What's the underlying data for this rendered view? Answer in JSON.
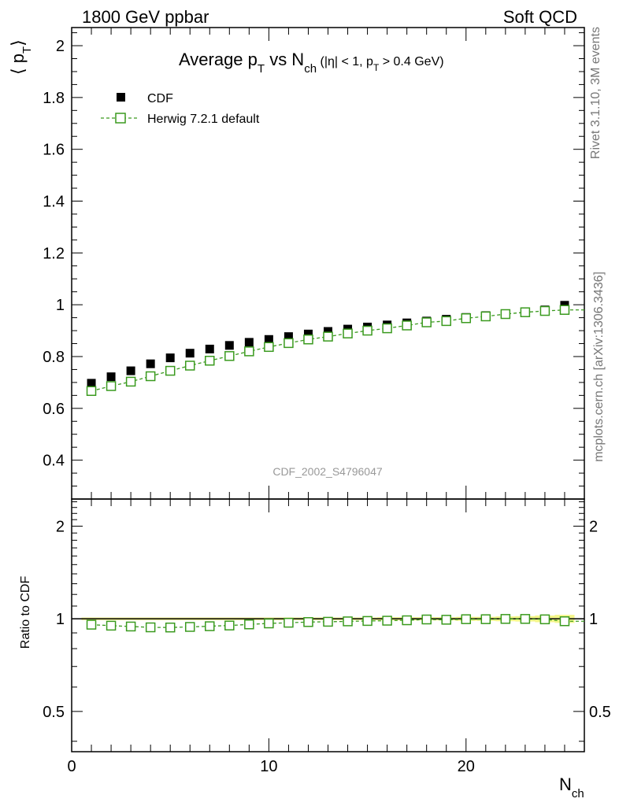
{
  "header": {
    "left": "1800 GeV ppbar",
    "right": "Soft QCD"
  },
  "side_labels": {
    "top": "Rivet 3.1.10,  3M events",
    "bottom": "mcplots.cern.ch [arXiv:1306.3436]"
  },
  "watermark": "CDF_2002_S4796047",
  "title": {
    "main": "Average p",
    "main_sub": "T",
    "vs": " vs N",
    "vs_sub": "ch",
    "cut_a": " (|η| < 1, p",
    "cut_sub": "T",
    "cut_b": " > 0.4 GeV)"
  },
  "axes": {
    "ylabel_open": "⟨ p",
    "ylabel_sub": "T",
    "ylabel_close": "⟩",
    "ratio_ylabel": "Ratio to CDF",
    "xlabel": "N",
    "xlabel_sub": "ch"
  },
  "colors": {
    "data": "#000000",
    "mc": "#3a9a1e",
    "band": "#f4f68a",
    "watermark": "#999999",
    "side": "#777777"
  },
  "chart_data": [
    {
      "type": "scatter",
      "panel": "main",
      "xlim": [
        0,
        26
      ],
      "ylim": [
        0.25,
        2.07
      ],
      "yticks_major": [
        0.4,
        0.6,
        0.8,
        1,
        1.2,
        1.4,
        1.6,
        1.8,
        2
      ],
      "ytick_labels": [
        "0.4",
        "0.6",
        "0.8",
        "1",
        "1.2",
        "1.4",
        "1.6",
        "1.8",
        "2"
      ],
      "xticks_major": [
        0,
        10,
        20
      ],
      "legend_position": "top-left",
      "x": [
        1,
        2,
        3,
        4,
        5,
        6,
        7,
        8,
        9,
        10,
        11,
        12,
        13,
        14,
        15,
        16,
        17,
        18,
        19,
        20,
        21,
        22,
        23,
        24,
        25
      ],
      "series": [
        {
          "name": "CDF",
          "style": "filled-square",
          "values": [
            0.697,
            0.722,
            0.745,
            0.772,
            0.795,
            0.813,
            0.829,
            0.843,
            0.855,
            0.866,
            0.877,
            0.887,
            0.897,
            0.906,
            0.914,
            0.922,
            0.93,
            0.937,
            0.944,
            0.951,
            0.958,
            0.965,
            0.972,
            0.98,
            0.998
          ]
        },
        {
          "name": "Herwig 7.2.1 default",
          "style": "open-square-dashed",
          "values": [
            0.667,
            0.686,
            0.703,
            0.724,
            0.745,
            0.765,
            0.784,
            0.802,
            0.82,
            0.837,
            0.852,
            0.866,
            0.877,
            0.889,
            0.9,
            0.909,
            0.92,
            0.932,
            0.937,
            0.948,
            0.955,
            0.964,
            0.971,
            0.976,
            0.98
          ]
        }
      ]
    },
    {
      "type": "scatter",
      "panel": "ratio",
      "xlim": [
        0,
        26
      ],
      "ylim": [
        0.37,
        2.45
      ],
      "log_scale": true,
      "yticks_major": [
        0.5,
        1,
        2
      ],
      "ytick_labels": [
        "0.5",
        "1",
        "2"
      ],
      "xticks_major": [
        0,
        10,
        20
      ],
      "xtick_labels": [
        "0",
        "10",
        "20"
      ],
      "band_halfwidth": [
        0.01,
        0.01,
        0.01,
        0.01,
        0.01,
        0.01,
        0.01,
        0.01,
        0.01,
        0.01,
        0.01,
        0.01,
        0.01,
        0.01,
        0.01,
        0.012,
        0.012,
        0.012,
        0.012,
        0.015,
        0.015,
        0.018,
        0.02,
        0.025,
        0.03
      ],
      "x": [
        1,
        2,
        3,
        4,
        5,
        6,
        7,
        8,
        9,
        10,
        11,
        12,
        13,
        14,
        15,
        16,
        17,
        18,
        19,
        20,
        21,
        22,
        23,
        24,
        25
      ],
      "series": [
        {
          "name": "Herwig 7.2.1 default",
          "values": [
            0.957,
            0.95,
            0.944,
            0.938,
            0.937,
            0.941,
            0.946,
            0.951,
            0.959,
            0.966,
            0.971,
            0.976,
            0.978,
            0.981,
            0.984,
            0.986,
            0.989,
            0.995,
            0.993,
            0.997,
            0.997,
            0.999,
            0.999,
            0.996,
            0.982
          ]
        }
      ]
    }
  ]
}
